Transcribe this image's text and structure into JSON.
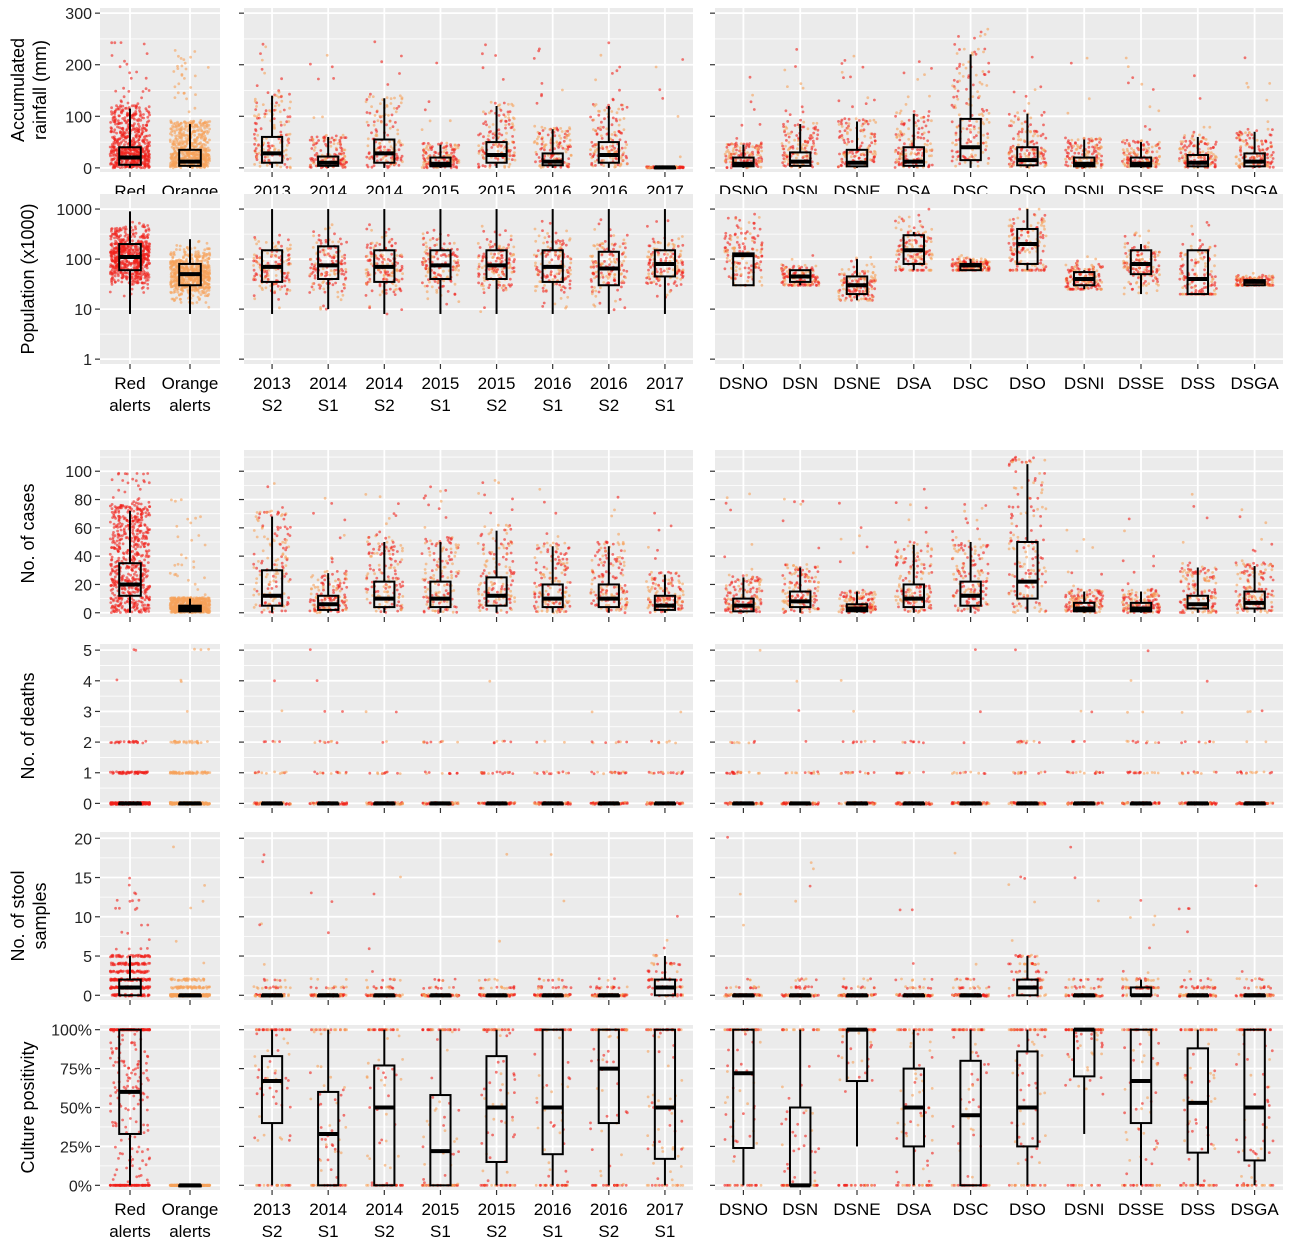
{
  "colors": {
    "red": "#f0211a",
    "orange": "#f6a15a",
    "panel_bg": "#ebebeb",
    "grid": "#ffffff",
    "box": "#000000"
  },
  "chart_data": {
    "type": "box-jitter",
    "groups": [
      {
        "name": "alert_type",
        "tick_labels": [
          [
            "Red",
            "alerts"
          ],
          [
            "Orange",
            "alerts"
          ]
        ]
      },
      {
        "name": "semester",
        "tick_labels": [
          [
            "2013",
            "S2"
          ],
          [
            "2014",
            "S1"
          ],
          [
            "2014",
            "S2"
          ],
          [
            "2015",
            "S1"
          ],
          [
            "2015",
            "S2"
          ],
          [
            "2016",
            "S1"
          ],
          [
            "2016",
            "S2"
          ],
          [
            "2017",
            "S1"
          ]
        ]
      },
      {
        "name": "district",
        "tick_labels": [
          [
            "DSNO"
          ],
          [
            "DSN"
          ],
          [
            "DSNE"
          ],
          [
            "DSA"
          ],
          [
            "DSC"
          ],
          [
            "DSO"
          ],
          [
            "DSNI"
          ],
          [
            "DSSE"
          ],
          [
            "DSS"
          ],
          [
            "DSGA"
          ]
        ]
      }
    ],
    "rows": [
      {
        "ylabel": [
          "Accumulated",
          "rainfall (mm)"
        ],
        "scale": "linear",
        "ylim": [
          -8,
          310
        ],
        "ticks": [
          0,
          100,
          200,
          300
        ],
        "tick_labels": [
          "0",
          "100",
          "200",
          "300"
        ],
        "minor": [
          50,
          150,
          250
        ],
        "cap": 300,
        "density": 150,
        "dist": "skew",
        "boxes": [
          [
            [
              0,
              6,
              20,
              40,
              115
            ],
            [
              0,
              4,
              12,
              35,
              85
            ]
          ],
          [
            [
              0,
              10,
              28,
              60,
              140
            ],
            [
              0,
              4,
              10,
              22,
              60
            ],
            [
              0,
              10,
              28,
              55,
              135
            ],
            [
              0,
              3,
              8,
              20,
              45
            ],
            [
              0,
              10,
              25,
              50,
              120
            ],
            [
              0,
              5,
              12,
              28,
              75
            ],
            [
              0,
              10,
              25,
              50,
              120
            ],
            [
              0,
              0,
              1,
              1,
              2
            ]
          ],
          [
            [
              0,
              3,
              8,
              20,
              45
            ],
            [
              0,
              4,
              12,
              30,
              85
            ],
            [
              0,
              3,
              10,
              35,
              90
            ],
            [
              0,
              4,
              12,
              40,
              105
            ],
            [
              0,
              15,
              40,
              95,
              220
            ],
            [
              0,
              5,
              15,
              40,
              105
            ],
            [
              0,
              3,
              8,
              20,
              55
            ],
            [
              0,
              3,
              8,
              20,
              50
            ],
            [
              0,
              3,
              10,
              25,
              60
            ],
            [
              0,
              3,
              12,
              28,
              70
            ]
          ]
        ]
      },
      {
        "ylabel": [
          "Population (x1000)"
        ],
        "scale": "log",
        "ylim": [
          0.8,
          2000
        ],
        "ticks": [
          1,
          10,
          100,
          1000
        ],
        "tick_labels": [
          "1",
          "10",
          "100",
          "1000"
        ],
        "minor": [
          3.16,
          31.6,
          316
        ],
        "cap": 1000,
        "density": 150,
        "dist": "log",
        "boxes": [
          [
            [
              8,
              60,
              110,
              200,
              900
            ],
            [
              8,
              30,
              50,
              80,
              250
            ]
          ],
          [
            [
              8,
              35,
              70,
              150,
              1000
            ],
            [
              10,
              40,
              75,
              180,
              1000
            ],
            [
              8,
              35,
              70,
              150,
              1000
            ],
            [
              8,
              40,
              75,
              150,
              1000
            ],
            [
              8,
              40,
              75,
              150,
              1000
            ],
            [
              8,
              35,
              70,
              150,
              1000
            ],
            [
              8,
              30,
              65,
              140,
              1000
            ],
            [
              8,
              45,
              80,
              150,
              1000
            ]
          ],
          [
            [
              30,
              30,
              120,
              130,
              130
            ],
            [
              30,
              35,
              45,
              60,
              60
            ],
            [
              15,
              20,
              30,
              45,
              100
            ],
            [
              60,
              80,
              150,
              300,
              350
            ],
            [
              60,
              60,
              75,
              80,
              100
            ],
            [
              60,
              80,
              200,
              400,
              1000
            ],
            [
              25,
              30,
              40,
              55,
              60
            ],
            [
              20,
              50,
              80,
              150,
              200
            ],
            [
              20,
              20,
              40,
              150,
              150
            ],
            [
              30,
              30,
              35,
              38,
              40
            ]
          ]
        ]
      },
      {
        "ylabel": [
          "No. of cases"
        ],
        "scale": "linear",
        "ylim": [
          -3,
          115
        ],
        "ticks": [
          0,
          20,
          40,
          60,
          80,
          100
        ],
        "tick_labels": [
          "0",
          "20",
          "40",
          "60",
          "80",
          "100"
        ],
        "minor": [
          10,
          30,
          50,
          70,
          90,
          110
        ],
        "cap": 110,
        "density": 150,
        "dist": "skew",
        "boxes": [
          [
            [
              0,
              12,
              20,
              35,
              72
            ],
            [
              0,
              1,
              3,
              5,
              10
            ]
          ],
          [
            [
              0,
              5,
              12,
              30,
              68
            ],
            [
              0,
              2,
              6,
              12,
              28
            ],
            [
              0,
              4,
              10,
              22,
              50
            ],
            [
              0,
              4,
              10,
              22,
              50
            ],
            [
              0,
              5,
              12,
              25,
              58
            ],
            [
              0,
              4,
              10,
              20,
              47
            ],
            [
              0,
              4,
              10,
              20,
              47
            ],
            [
              0,
              2,
              5,
              12,
              27
            ]
          ],
          [
            [
              0,
              1,
              5,
              10,
              25
            ],
            [
              0,
              4,
              8,
              15,
              32
            ],
            [
              0,
              1,
              3,
              6,
              15
            ],
            [
              0,
              4,
              10,
              20,
              48
            ],
            [
              0,
              5,
              12,
              22,
              50
            ],
            [
              0,
              10,
              22,
              50,
              105
            ],
            [
              0,
              1,
              3,
              7,
              15
            ],
            [
              0,
              1,
              3,
              7,
              15
            ],
            [
              0,
              3,
              6,
              12,
              32
            ],
            [
              0,
              3,
              7,
              15,
              33
            ]
          ]
        ]
      },
      {
        "ylabel": [
          "No. of deaths"
        ],
        "scale": "linear",
        "ylim": [
          -0.15,
          5.2
        ],
        "ticks": [
          0,
          1,
          2,
          3,
          4,
          5
        ],
        "tick_labels": [
          "0",
          "1",
          "2",
          "3",
          "4",
          "5"
        ],
        "minor": [
          0.5,
          1.5,
          2.5,
          3.5,
          4.5
        ],
        "cap": 5,
        "density": 80,
        "dist": "int",
        "boxes": [
          [
            [
              0,
              0,
              0,
              0,
              0
            ],
            [
              0,
              0,
              0,
              0,
              0
            ]
          ],
          [
            [
              0,
              0,
              0,
              0,
              0
            ],
            [
              0,
              0,
              0,
              0,
              0
            ],
            [
              0,
              0,
              0,
              0,
              0
            ],
            [
              0,
              0,
              0,
              0,
              0
            ],
            [
              0,
              0,
              0,
              0,
              0
            ],
            [
              0,
              0,
              0,
              0,
              0
            ],
            [
              0,
              0,
              0,
              0,
              0
            ],
            [
              0,
              0,
              0,
              0,
              0
            ]
          ],
          [
            [
              0,
              0,
              0,
              0,
              0
            ],
            [
              0,
              0,
              0,
              0,
              0
            ],
            [
              0,
              0,
              0,
              0,
              0
            ],
            [
              0,
              0,
              0,
              0,
              0
            ],
            [
              0,
              0,
              0,
              0,
              0
            ],
            [
              0,
              0,
              0,
              0,
              0
            ],
            [
              0,
              0,
              0,
              0,
              0
            ],
            [
              0,
              0,
              0,
              0,
              0
            ],
            [
              0,
              0,
              0,
              0,
              0
            ],
            [
              0,
              0,
              0,
              0,
              0
            ]
          ]
        ]
      },
      {
        "ylabel": [
          "No. of stool",
          "samples"
        ],
        "scale": "linear",
        "ylim": [
          -0.6,
          20.8
        ],
        "ticks": [
          0,
          5,
          10,
          15,
          20
        ],
        "tick_labels": [
          "0",
          "5",
          "10",
          "15",
          "20"
        ],
        "minor": [
          2.5,
          7.5,
          12.5,
          17.5
        ],
        "cap": 20,
        "density": 90,
        "dist": "int",
        "boxes": [
          [
            [
              0,
              0,
              1,
              2,
              5
            ],
            [
              0,
              0,
              0,
              0,
              0
            ]
          ],
          [
            [
              0,
              0,
              0,
              0,
              0
            ],
            [
              0,
              0,
              0,
              0,
              0
            ],
            [
              0,
              0,
              0,
              0,
              0
            ],
            [
              0,
              0,
              0,
              0,
              0
            ],
            [
              0,
              0,
              0,
              0,
              0
            ],
            [
              0,
              0,
              0,
              0,
              0
            ],
            [
              0,
              0,
              0,
              0,
              0
            ],
            [
              0,
              0,
              1,
              2,
              5
            ]
          ],
          [
            [
              0,
              0,
              0,
              0,
              0
            ],
            [
              0,
              0,
              0,
              0,
              0
            ],
            [
              0,
              0,
              0,
              0,
              0
            ],
            [
              0,
              0,
              0,
              0,
              0
            ],
            [
              0,
              0,
              0,
              0,
              0
            ],
            [
              0,
              0,
              1,
              2,
              5
            ],
            [
              0,
              0,
              0,
              0,
              0
            ],
            [
              0,
              0,
              0,
              1,
              2
            ],
            [
              0,
              0,
              0,
              0,
              0
            ],
            [
              0,
              0,
              0,
              0,
              0
            ]
          ]
        ]
      },
      {
        "ylabel": [
          "Culture positivity"
        ],
        "scale": "linear",
        "ylim": [
          -0.03,
          1.03
        ],
        "ticks": [
          0,
          0.25,
          0.5,
          0.75,
          1
        ],
        "tick_labels": [
          "0%",
          "25%",
          "50%",
          "75%",
          "100%"
        ],
        "minor": [
          0.125,
          0.375,
          0.625,
          0.875
        ],
        "cap": 1,
        "density": 90,
        "dist": "pct",
        "boxes": [
          [
            [
              0,
              0.33,
              0.6,
              1,
              1
            ],
            [
              0,
              0,
              0,
              0,
              0
            ]
          ],
          [
            [
              0,
              0.4,
              0.67,
              0.83,
              1
            ],
            [
              0,
              0,
              0.33,
              0.6,
              1
            ],
            [
              0,
              0,
              0.5,
              0.77,
              1
            ],
            [
              0,
              0,
              0.22,
              0.58,
              1
            ],
            [
              0,
              0.15,
              0.5,
              0.83,
              1
            ],
            [
              0,
              0.2,
              0.5,
              1,
              1
            ],
            [
              0,
              0.4,
              0.75,
              1,
              1
            ],
            [
              0,
              0.17,
              0.5,
              1,
              1
            ]
          ],
          [
            [
              0,
              0.24,
              0.72,
              1,
              1
            ],
            [
              0,
              0,
              0,
              0.5,
              1
            ],
            [
              0.25,
              0.67,
              1,
              1,
              1
            ],
            [
              0,
              0.25,
              0.5,
              0.75,
              1
            ],
            [
              0,
              0,
              0.45,
              0.8,
              1
            ],
            [
              0,
              0.25,
              0.5,
              0.86,
              1
            ],
            [
              0.33,
              0.7,
              1,
              1,
              1
            ],
            [
              0,
              0.4,
              0.67,
              1,
              1
            ],
            [
              0,
              0.21,
              0.53,
              0.88,
              1
            ],
            [
              0,
              0.16,
              0.5,
              1,
              1
            ]
          ]
        ]
      }
    ]
  }
}
